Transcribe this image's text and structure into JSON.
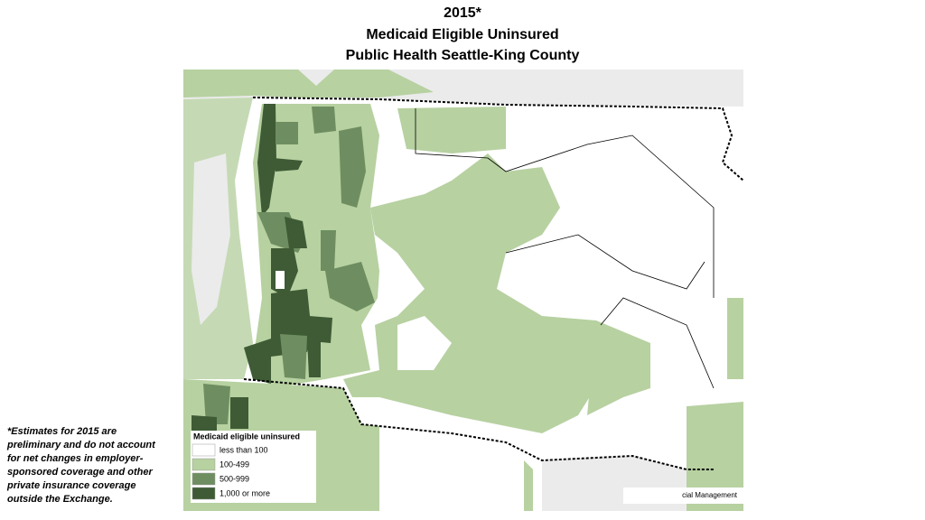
{
  "title": {
    "lines": [
      "2015*",
      "Medicaid Eligible Uninsured",
      "Public Health Seattle-King County"
    ]
  },
  "footnote": {
    "lines": [
      "*Estimates for 2015 are",
      "preliminary and do not account",
      "for net changes in employer-",
      "sponsored coverage and other",
      "private insurance coverage",
      "outside the Exchange."
    ]
  },
  "map": {
    "legend": {
      "title": "Medicaid eligible uninsured",
      "items": [
        {
          "label": "less than 100",
          "color": "#ffffff"
        },
        {
          "label": "100-499",
          "color": "#b7d1a1"
        },
        {
          "label": "500-999",
          "color": "#6e8e61"
        },
        {
          "label": "1,000 or more",
          "color": "#3e5b35"
        }
      ]
    },
    "source": "cial Management"
  }
}
